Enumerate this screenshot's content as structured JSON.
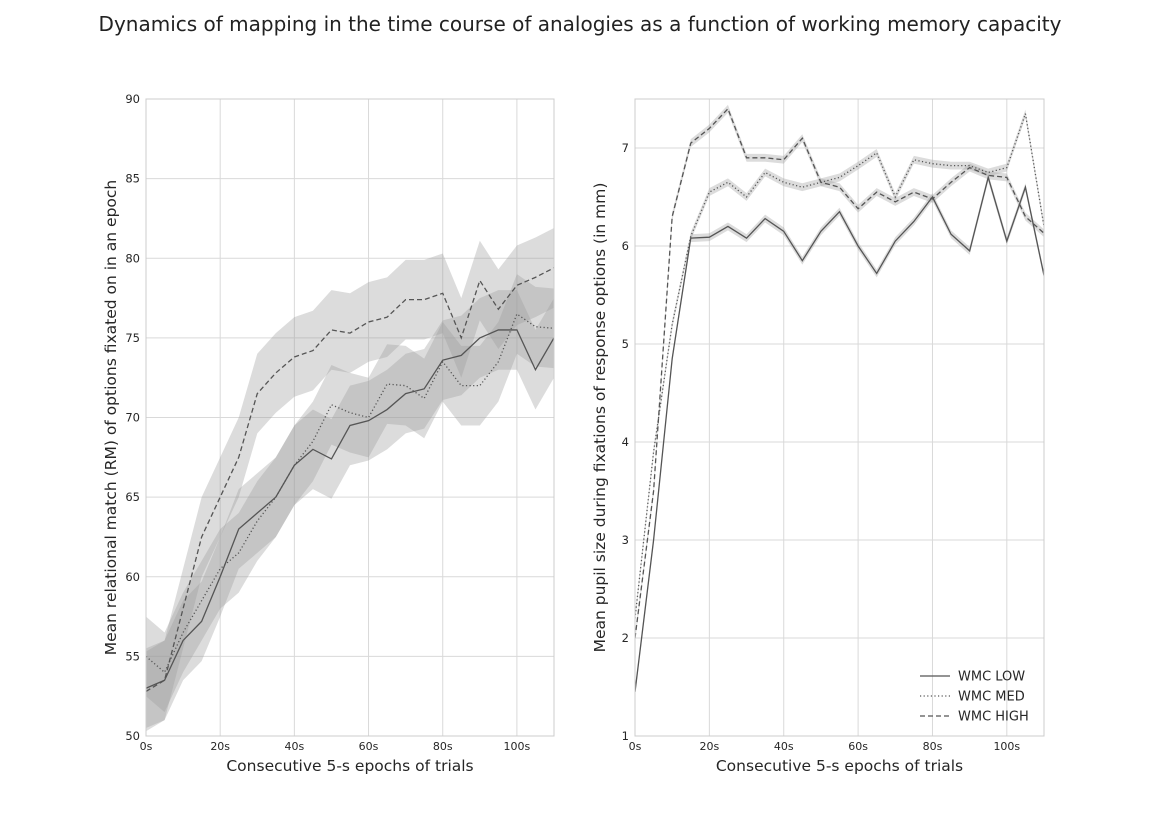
{
  "figure": {
    "title": "Dynamics of mapping in the time course of analogies as a function of working memory capacity"
  },
  "chart_data": [
    {
      "type": "line",
      "panel": "left",
      "xlabel": "Consecutive 5-s epochs of trials",
      "ylabel": "Mean relational match (RM) of options fixated on in an epoch",
      "xlim": [
        0,
        110
      ],
      "ylim": [
        50,
        90
      ],
      "xticks": [
        0,
        20,
        40,
        60,
        80,
        100
      ],
      "xtick_labels": [
        "0s",
        "20s",
        "40s",
        "60s",
        "80s",
        "100s"
      ],
      "yticks": [
        50,
        55,
        60,
        65,
        70,
        75,
        80,
        85,
        90
      ],
      "ytick_labels": [
        "50",
        "55",
        "60",
        "65",
        "70",
        "75",
        "80",
        "85",
        "90"
      ],
      "grid": true,
      "x": [
        0,
        5,
        10,
        15,
        20,
        25,
        30,
        35,
        40,
        45,
        50,
        55,
        60,
        65,
        70,
        75,
        80,
        85,
        90,
        95,
        100,
        105,
        110
      ],
      "series": [
        {
          "name": "WMC LOW",
          "style": "solid",
          "values": [
            53.0,
            53.5,
            56.0,
            57.2,
            60.0,
            63.0,
            64.0,
            65.0,
            67.0,
            68.0,
            67.4,
            69.5,
            69.8,
            70.5,
            71.5,
            71.8,
            73.6,
            73.9,
            75.0,
            75.5,
            75.5,
            73.0,
            75.0
          ],
          "band": 2.5
        },
        {
          "name": "WMC MED",
          "style": "dotted",
          "values": [
            55.0,
            54.0,
            56.5,
            58.5,
            60.5,
            61.5,
            63.5,
            65.0,
            67.0,
            68.5,
            70.8,
            70.3,
            70.0,
            72.1,
            72.0,
            71.2,
            73.5,
            72.0,
            72.0,
            73.5,
            76.5,
            75.7,
            75.6
          ],
          "band": 2.5
        },
        {
          "name": "WMC HIGH",
          "style": "dashed",
          "values": [
            52.8,
            53.5,
            58.0,
            62.5,
            65.0,
            67.5,
            71.5,
            72.8,
            73.8,
            74.2,
            75.5,
            75.3,
            76.0,
            76.3,
            77.4,
            77.4,
            77.8,
            75.0,
            78.6,
            76.8,
            78.3,
            78.8,
            79.4
          ],
          "band": 2.5
        }
      ]
    },
    {
      "type": "line",
      "panel": "right",
      "xlabel": "Consecutive 5-s epochs of trials",
      "ylabel": "Mean pupil size during fixations of response options (in mm)",
      "xlim": [
        0,
        110
      ],
      "ylim": [
        1,
        7.5
      ],
      "xticks": [
        0,
        20,
        40,
        60,
        80,
        100
      ],
      "xtick_labels": [
        "0s",
        "20s",
        "40s",
        "60s",
        "80s",
        "100s"
      ],
      "yticks": [
        1,
        2,
        3,
        4,
        5,
        6,
        7
      ],
      "ytick_labels": [
        "1",
        "2",
        "3",
        "4",
        "5",
        "6",
        "7"
      ],
      "grid": true,
      "legend": "bottom-right",
      "x": [
        0,
        5,
        10,
        15,
        20,
        25,
        30,
        35,
        40,
        45,
        50,
        55,
        60,
        65,
        70,
        75,
        80,
        85,
        90,
        95,
        100,
        105,
        110
      ],
      "series": [
        {
          "name": "WMC LOW",
          "style": "solid",
          "values": [
            1.45,
            3.0,
            4.85,
            6.08,
            6.09,
            6.2,
            6.08,
            6.28,
            6.15,
            5.85,
            6.15,
            6.35,
            6.0,
            5.72,
            6.05,
            6.25,
            6.5,
            6.12,
            5.95,
            6.7,
            6.05,
            6.6,
            5.7
          ],
          "band": 0.04
        },
        {
          "name": "WMC MED",
          "style": "dotted",
          "values": [
            2.2,
            3.9,
            5.2,
            6.1,
            6.55,
            6.65,
            6.5,
            6.75,
            6.65,
            6.6,
            6.65,
            6.7,
            6.82,
            6.95,
            6.5,
            6.88,
            6.84,
            6.82,
            6.82,
            6.75,
            6.8,
            7.35,
            6.2
          ],
          "band": 0.04
        },
        {
          "name": "WMC HIGH",
          "style": "dashed",
          "values": [
            2.0,
            3.5,
            6.3,
            7.05,
            7.2,
            7.4,
            6.9,
            6.9,
            6.88,
            7.1,
            6.65,
            6.6,
            6.38,
            6.55,
            6.45,
            6.55,
            6.48,
            6.65,
            6.8,
            6.72,
            6.7,
            6.3,
            6.13
          ],
          "band": 0.04
        }
      ]
    }
  ]
}
